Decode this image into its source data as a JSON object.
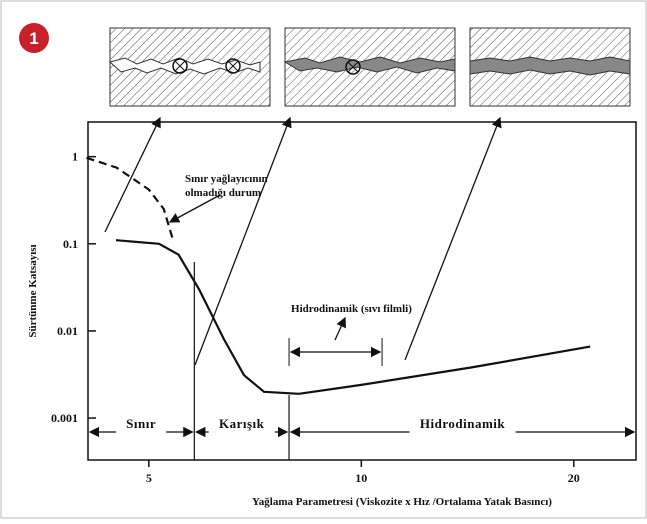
{
  "badge": "1",
  "chart_data": {
    "type": "line",
    "xlabel": "Yağlama Parametresi (Viskozite x Hız /Ortalama Yatak Basıncı)",
    "ylabel": "Sürtünme Katsayısı",
    "xscale": "log",
    "yscale": "log",
    "xlim": [
      4.1,
      24.5
    ],
    "ylim": [
      0.00033,
      2.5
    ],
    "xticks": [
      5,
      10,
      20
    ],
    "yticks": [
      1,
      0.1,
      0.01,
      0.001
    ],
    "color": "#111111",
    "series": [
      {
        "x": [
          4.49,
          5.17,
          5.51,
          5.89,
          6.39,
          6.82,
          7.28,
          8.16,
          10,
          14.3,
          21.1
        ],
        "values": [
          0.11,
          0.1,
          0.075,
          0.03,
          0.008,
          0.0031,
          0.002,
          0.0019,
          0.0024,
          0.0038,
          0.0066
        ],
        "dashed": false
      },
      {
        "x": [
          4.08,
          4.5,
          5,
          5.25,
          5.4
        ],
        "values": [
          0.97,
          0.75,
          0.42,
          0.25,
          0.117
        ],
        "dashed": true
      }
    ],
    "boundary_note": [
      "Sınır yağlayıcının",
      "olmadığı durum"
    ],
    "film_note": {
      "label": "Hidrodinamik (sıvı filmli)",
      "from": 7.9,
      "to": 10.7
    },
    "regions": [
      {
        "label": "Sınır",
        "from": 4.1,
        "to": 5.8
      },
      {
        "label": "Karışık",
        "from": 5.8,
        "to": 7.9
      },
      {
        "label": "Hidrodinamik",
        "from": 7.9,
        "to": 24.5
      }
    ]
  }
}
